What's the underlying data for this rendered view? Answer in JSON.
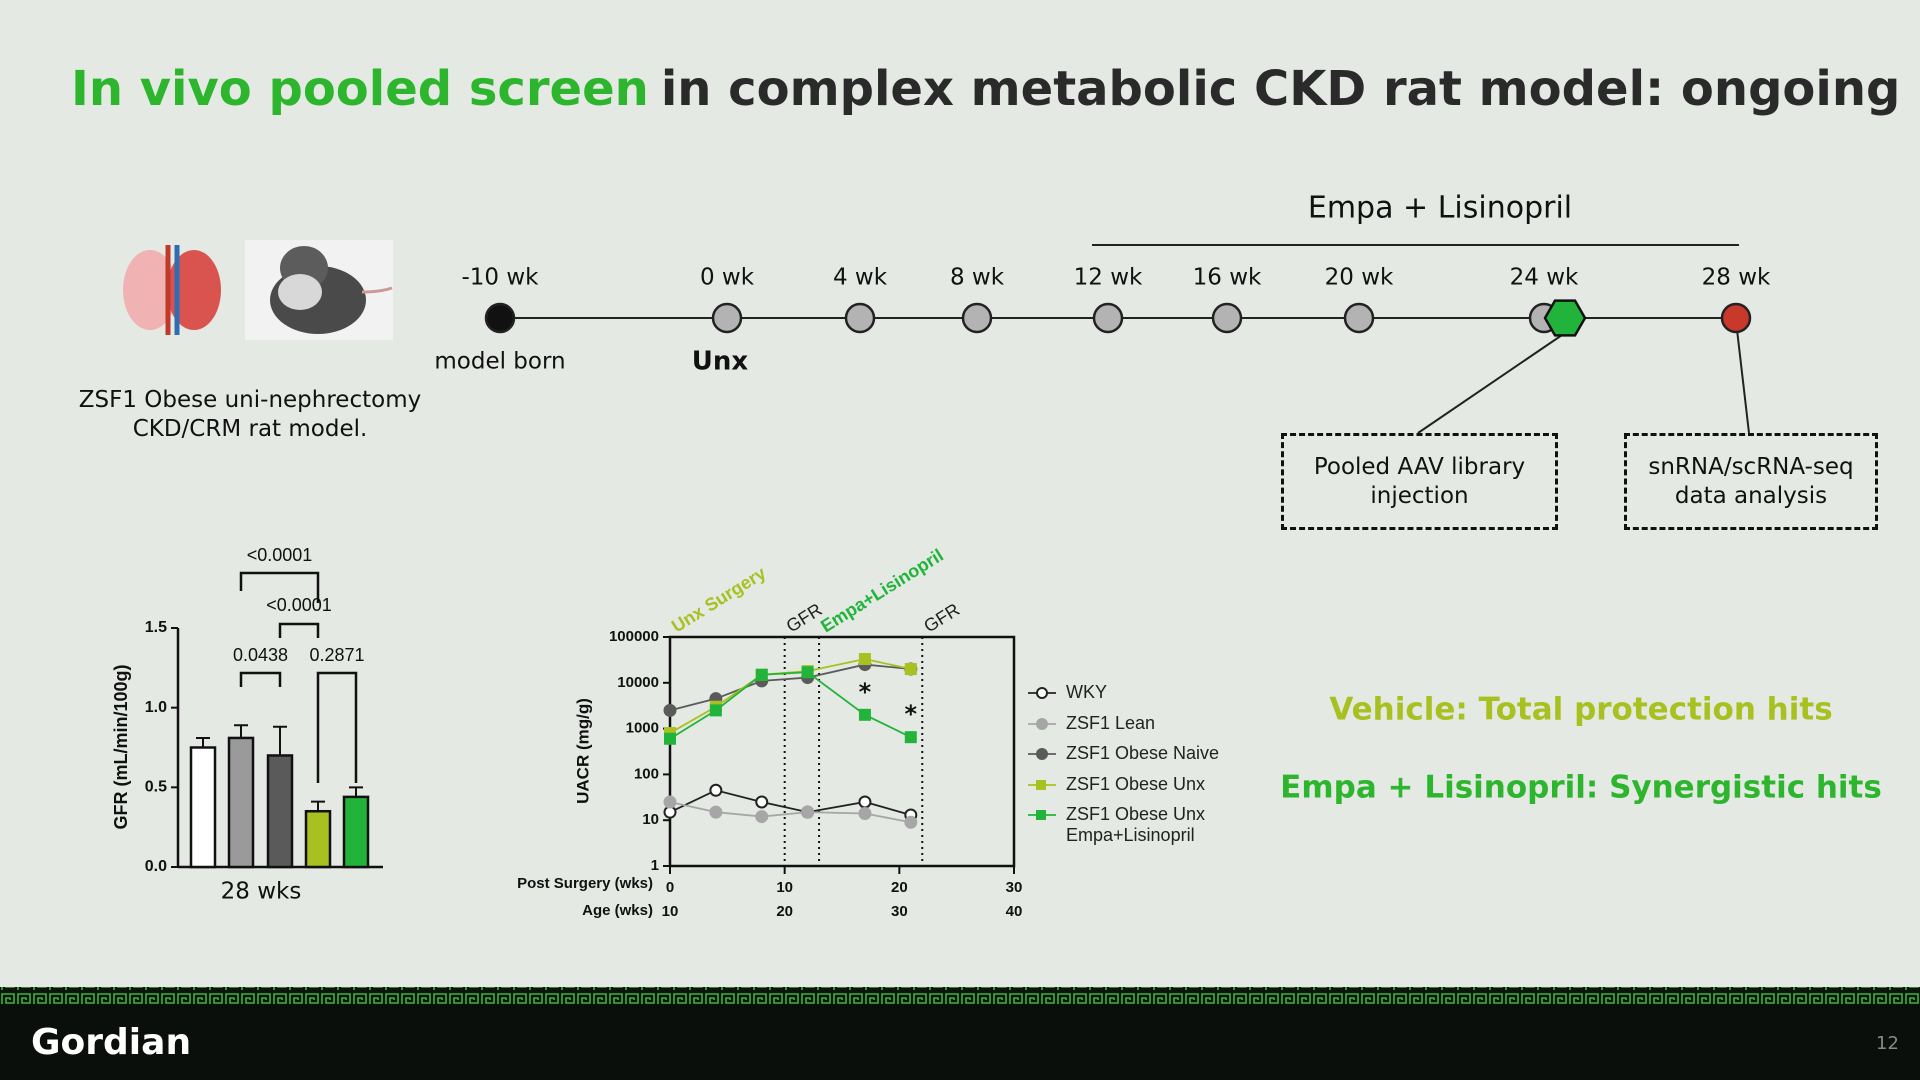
{
  "header": {
    "title_highlight": "In vivo pooled screen",
    "title_rest": "in complex metabolic CKD rat model: ongoing"
  },
  "model": {
    "caption": "ZSF1 Obese uni-nephrectomy CKD/CRM rat model."
  },
  "timeline": {
    "treatment_label": "Empa + Lisinopril",
    "nodes": [
      {
        "label": "-10 wk",
        "note": "model born",
        "color": "#111111"
      },
      {
        "label": "0 wk",
        "note": "Unx",
        "color": "#b3b3b3"
      },
      {
        "label": "4 wk",
        "color": "#b3b3b3"
      },
      {
        "label": "8 wk",
        "color": "#b3b3b3"
      },
      {
        "label": "12 wk",
        "color": "#b3b3b3"
      },
      {
        "label": "16 wk",
        "color": "#b3b3b3"
      },
      {
        "label": "20 wk",
        "color": "#b3b3b3"
      },
      {
        "label": "24 wk",
        "color": "#b3b3b3"
      },
      {
        "label": "28 wk",
        "color": "#c8392b"
      }
    ]
  },
  "callouts": [
    "Pooled AAV library injection",
    "snRNA/scRNA-seq data analysis"
  ],
  "chart_data": [
    {
      "type": "bar",
      "ylabel": "GFR (mL/min/100g)",
      "xlabel": "28 wks",
      "categories": [
        null,
        null,
        null,
        null,
        null
      ],
      "values": [
        0.75,
        0.81,
        0.7,
        0.35,
        0.44
      ],
      "errors": [
        0.06,
        0.08,
        0.18,
        0.06,
        0.06
      ],
      "colors": [
        "#ffffff",
        "#9a9a9a",
        "#5a5a5a",
        "#a8c020",
        "#22b43a"
      ],
      "ylim": [
        0,
        1.5
      ],
      "yticks": [
        {
          "value": 0,
          "label": "0.0"
        },
        0.5,
        {
          "value": 1,
          "label": "1.0"
        },
        1.5
      ],
      "annotations": [
        "<0.0001",
        "<0.0001",
        "0.0438",
        "0.2871"
      ]
    },
    {
      "type": "line",
      "ylabel": "UACR (mg/g)",
      "xlabel": "Post Surgery  (wks)",
      "x2label": "Age  (wks)",
      "log_y": true,
      "x": [
        0,
        4,
        8,
        12,
        17,
        21
      ],
      "xlim": [
        0,
        30
      ],
      "xticks": [
        0,
        10,
        20,
        30
      ],
      "x2lim": [
        10,
        40
      ],
      "x2ticks": [
        10,
        20,
        30,
        40
      ],
      "ylim": [
        1,
        100000
      ],
      "yticks": [
        1,
        10,
        100,
        1000,
        10000,
        100000
      ],
      "series": [
        {
          "name": "WKY",
          "color": "#222222",
          "marker": "open-circle",
          "values": [
            15,
            45,
            25,
            15,
            25,
            13
          ]
        },
        {
          "name": "ZSF1 Lean",
          "color": "#a6a6a6",
          "marker": "circle",
          "values": [
            25,
            15,
            12,
            15,
            14,
            9
          ]
        },
        {
          "name": "ZSF1 Obese Naive",
          "color": "#5a5a5a",
          "marker": "circle",
          "values": [
            2500,
            4500,
            11000,
            13000,
            25000,
            20000
          ]
        },
        {
          "name": "ZSF1 Obese Unx",
          "color": "#a8c020",
          "marker": "square",
          "values": [
            800,
            3000,
            15000,
            18000,
            33000,
            20000
          ]
        },
        {
          "name": "ZSF1 Obese Unx Empa+Lisinopril",
          "color": "#22b43a",
          "marker": "square",
          "values": [
            600,
            2500,
            15000,
            17000,
            2000,
            650
          ]
        }
      ],
      "annotations": [
        {
          "text": "Unx Surgery",
          "x": 0,
          "color": "#a8c020"
        },
        {
          "text": "GFR",
          "x": 10,
          "color": "#222222"
        },
        {
          "text": "Empa+Lisinopril",
          "x": 13,
          "color": "#22b43a"
        },
        {
          "text": "GFR",
          "x": 22,
          "color": "#222222"
        }
      ],
      "asterisks": [
        {
          "text": "*",
          "x": 17
        },
        {
          "text": "*",
          "x": 21
        }
      ]
    }
  ],
  "hits": [
    {
      "text": "Vehicle: Total protection hits",
      "color": "#a8c020"
    },
    {
      "text": "Empa + Lisinopril: Synergistic hits",
      "color": "#2db52d"
    }
  ],
  "footer": {
    "logo": "Gordian",
    "page": "12"
  }
}
